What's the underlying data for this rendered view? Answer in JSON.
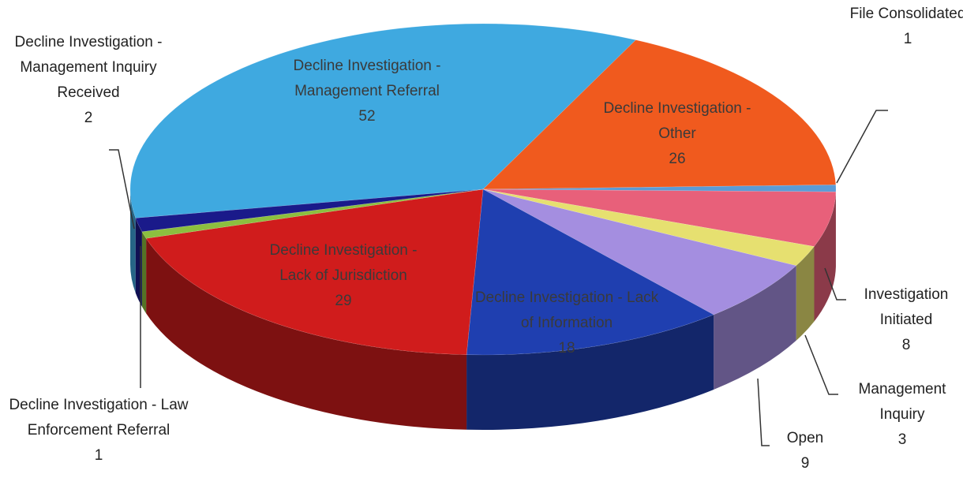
{
  "chart_data": {
    "type": "pie",
    "three_d": true,
    "categories": [
      "Decline Investigation - Management Referral",
      "Decline Investigation - Other",
      "File Consolidated",
      "Investigation Initiated",
      "Management Inquiry",
      "Open",
      "Decline Investigation - Lack of Information",
      "Decline Investigation - Lack of Jurisdiction",
      "Decline Investigation - Law Enforcement Referral",
      "Decline Investigation - Management Inquiry Received"
    ],
    "values": [
      52,
      26,
      1,
      8,
      3,
      9,
      18,
      29,
      1,
      2
    ],
    "colors": [
      "#3fa9e0",
      "#f05a1e",
      "#5b9bd5",
      "#e8607a",
      "#e6e070",
      "#a48ee0",
      "#1f3fb0",
      "#d01c1c",
      "#8cbf3f",
      "#1a1a8a"
    ]
  }
}
